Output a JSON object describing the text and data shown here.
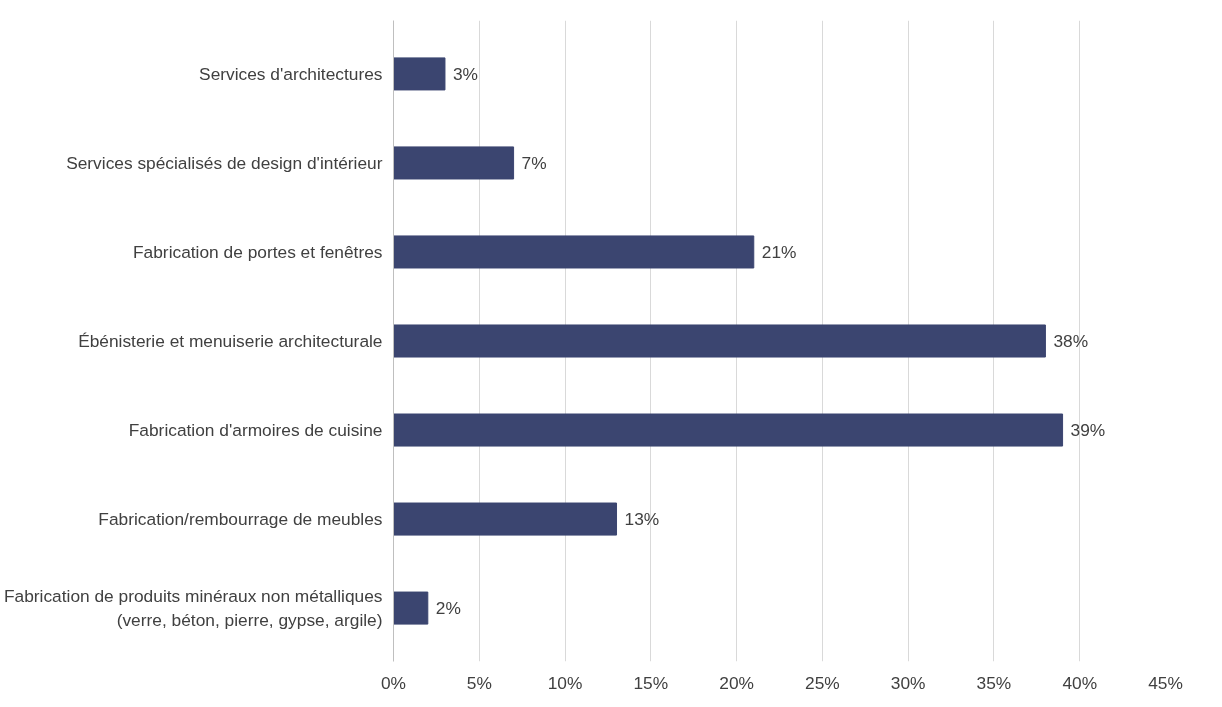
{
  "chart_data": {
    "type": "bar",
    "orientation": "horizontal",
    "categories": [
      "Services d'architectures",
      "Services spécialisés de design d'intérieur",
      "Fabrication de portes et fenêtres",
      "Ébénisterie et menuiserie architecturale",
      "Fabrication d'armoires de cuisine",
      "Fabrication/rembourrage de meubles",
      "Fabrication de produits minéraux non métalliques\n(verre, béton, pierre, gypse, argile)"
    ],
    "values": [
      3,
      7,
      21,
      38,
      39,
      13,
      2
    ],
    "value_labels": [
      "3%",
      "7%",
      "21%",
      "38%",
      "39%",
      "13%",
      "2%"
    ],
    "color": "#3b4570",
    "xlim": [
      0,
      45
    ],
    "xticks": [
      {
        "value": 0,
        "label": "0%"
      },
      {
        "value": 5,
        "label": "5%"
      },
      {
        "value": 10,
        "label": "10%"
      },
      {
        "value": 15,
        "label": "15%"
      },
      {
        "value": 20,
        "label": "20%"
      },
      {
        "value": 25,
        "label": "25%"
      },
      {
        "value": 30,
        "label": "30%"
      },
      {
        "value": 35,
        "label": "35%"
      },
      {
        "value": 40,
        "label": "40%"
      },
      {
        "value": 45,
        "label": "45%"
      }
    ],
    "grid": "x"
  }
}
